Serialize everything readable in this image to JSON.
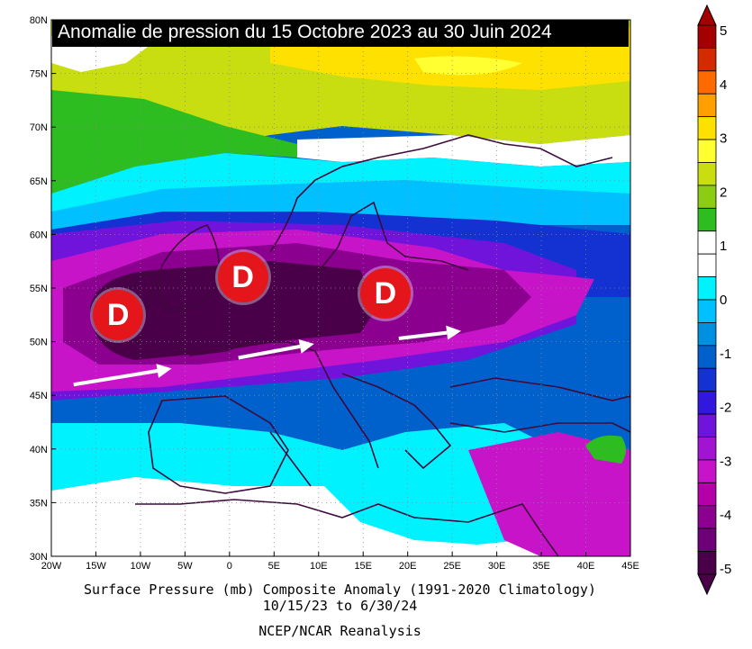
{
  "title": "Anomalie de pression du 15 Octobre 2023 au 30 Juin 2024",
  "caption": {
    "line1": "Surface Pressure (mb) Composite Anomaly (1991-2020 Climatology)",
    "line2": "10/15/23  to 6/30/24",
    "line3": "NCEP/NCAR Reanalysis"
  },
  "axes": {
    "lat_labels": [
      "80N",
      "75N",
      "70N",
      "65N",
      "60N",
      "55N",
      "50N",
      "45N",
      "40N",
      "35N",
      "30N"
    ],
    "lon_labels": [
      "20W",
      "15W",
      "10W",
      "5W",
      "0",
      "5E",
      "10E",
      "15E",
      "20E",
      "25E",
      "30E",
      "35E",
      "40E",
      "45E"
    ]
  },
  "low_markers": [
    {
      "label": "D",
      "lon": -12.5,
      "lat": 52.5
    },
    {
      "label": "D",
      "lon": 1.5,
      "lat": 56
    },
    {
      "label": "D",
      "lon": 17.5,
      "lat": 54.5
    }
  ],
  "arrows": [
    {
      "from_lon": -17.5,
      "from_lat": 46,
      "to_lon": -6.5,
      "to_lat": 47.5
    },
    {
      "from_lon": 1,
      "from_lat": 48.5,
      "to_lon": 9.5,
      "to_lat": 49.8
    },
    {
      "from_lon": 19,
      "from_lat": 50.3,
      "to_lon": 26,
      "to_lat": 51
    }
  ],
  "colorbar": {
    "labels": [
      "5",
      "4",
      "3",
      "2",
      "1",
      "0",
      "-1",
      "-2",
      "-3",
      "-4",
      "-5"
    ],
    "colors": [
      "#a50000",
      "#d42a00",
      "#ff6a00",
      "#ffa000",
      "#ffe100",
      "#ffff32",
      "#c8de10",
      "#8ccd14",
      "#2ebd21",
      "#ffffff",
      "#ffffff",
      "#00f2ff",
      "#00c0ff",
      "#0090e0",
      "#0060cc",
      "#1432d2",
      "#3218dc",
      "#7014dc",
      "#a014d2",
      "#c814c8",
      "#b400a8",
      "#8c0090",
      "#6e0078",
      "#4a0048"
    ]
  },
  "colors": {
    "land_line": "#3c0a3c",
    "marker": "#e4161c",
    "arrow": "#ffffff"
  }
}
